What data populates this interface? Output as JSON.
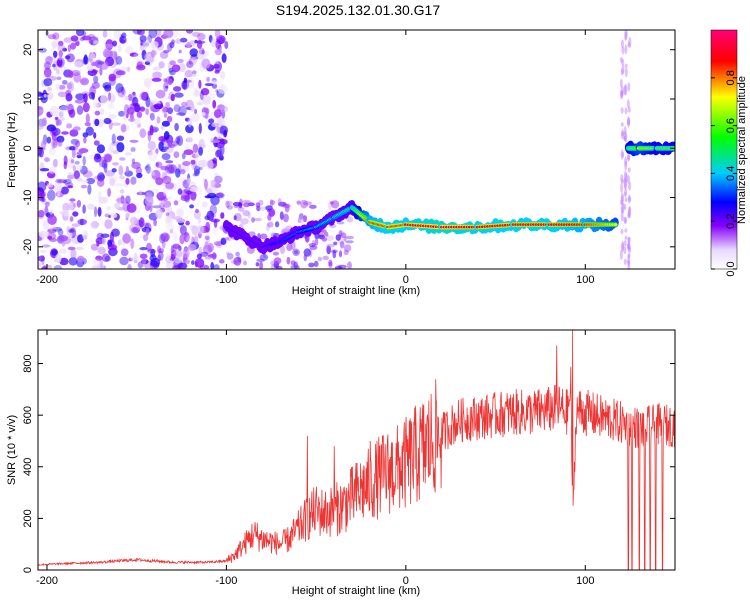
{
  "title": "S194.2025.132.01.30.G17",
  "chart_data": [
    {
      "type": "heatmap",
      "title": "S194.2025.132.01.30.G17",
      "xlabel": "Height of straight line (km)",
      "ylabel": "Frequency (Hz)",
      "xlim": [
        -205,
        150
      ],
      "ylim": [
        -24.5,
        24
      ],
      "xticks": [
        -200,
        -100,
        0,
        100
      ],
      "yticks": [
        -20,
        -10,
        0,
        10,
        20
      ],
      "colorbar": {
        "label": "Normalized spectral amplitude",
        "range": [
          0,
          1
        ],
        "ticks": [
          0.0,
          0.2,
          0.4,
          0.6,
          0.8
        ],
        "tick_labels": [
          "0.0",
          "0.2",
          "0.4",
          "0.6",
          "0.8"
        ],
        "colors": [
          "#ffffff",
          "#8800ff",
          "#0000ff",
          "#00ccff",
          "#00ff00",
          "#ffff00",
          "#ff0000",
          "#ff0077"
        ]
      },
      "ridges": [
        {
          "x": [
            -100,
            -90,
            -80,
            -70,
            -60,
            -50,
            -40,
            -30,
            -20,
            -10,
            0,
            20,
            40,
            60,
            80,
            100,
            118
          ],
          "y": [
            -16,
            -18,
            -20,
            -19,
            -17,
            -16,
            -14,
            -12,
            -15,
            -16,
            -15.5,
            -16,
            -16,
            -15.5,
            -15.5,
            -15.5,
            -15.5
          ],
          "amplitude": [
            0.25,
            0.25,
            0.25,
            0.3,
            0.35,
            0.4,
            0.45,
            0.5,
            0.85,
            0.9,
            0.9,
            0.95,
            0.9,
            0.9,
            0.9,
            0.85,
            0.7
          ]
        },
        {
          "x": [
            124,
            130,
            140,
            150
          ],
          "y": [
            0,
            0,
            0,
            0
          ],
          "amplitude": [
            0.6,
            0.7,
            0.6,
            0.6
          ]
        }
      ]
    },
    {
      "type": "line",
      "xlabel": "Height of straight line (km)",
      "ylabel": "SNR (10 * v/v)",
      "xlim": [
        -205,
        150
      ],
      "ylim": [
        0,
        930
      ],
      "xticks": [
        -200,
        -100,
        0,
        100
      ],
      "yticks": [
        0,
        200,
        400,
        600,
        800
      ],
      "color": "#ee3333",
      "series": [
        {
          "x": [
            -205,
            -190,
            -170,
            -150,
            -130,
            -110,
            -100,
            -95,
            -90,
            -85,
            -80,
            -75,
            -70,
            -65,
            -60,
            -55,
            -50,
            -45,
            -40,
            -35,
            -30,
            -25,
            -20,
            -15,
            -10,
            -5,
            0,
            5,
            10,
            15,
            20,
            25,
            30,
            40,
            50,
            60,
            70,
            80,
            85,
            90,
            92,
            93,
            95,
            100,
            110,
            120,
            125,
            130,
            140,
            150
          ],
          "y": [
            20,
            25,
            30,
            40,
            30,
            30,
            35,
            60,
            100,
            140,
            120,
            110,
            100,
            120,
            160,
            200,
            230,
            220,
            230,
            250,
            280,
            310,
            330,
            360,
            380,
            390,
            410,
            440,
            470,
            500,
            530,
            560,
            580,
            590,
            600,
            610,
            610,
            620,
            630,
            610,
            700,
            180,
            620,
            610,
            590,
            570,
            560,
            550,
            560,
            560
          ]
        }
      ],
      "spikes": [
        {
          "x": 93,
          "y": 930
        },
        {
          "x": 84,
          "y": 870
        },
        {
          "x": -55,
          "y": 520
        },
        {
          "x": -20,
          "y": 500
        },
        {
          "x": -40,
          "y": 480
        }
      ],
      "dropouts_x": [
        124,
        126,
        130,
        133,
        136,
        139,
        143
      ]
    }
  ]
}
